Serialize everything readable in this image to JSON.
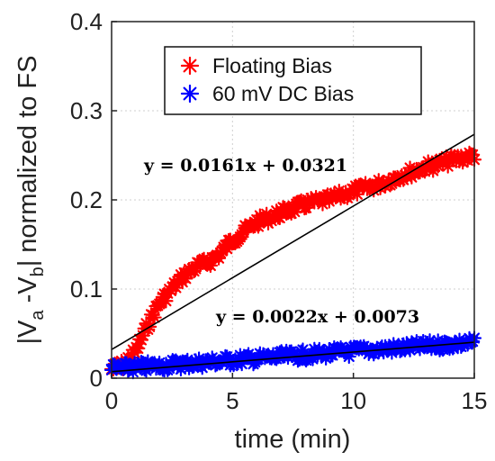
{
  "chart_data": {
    "type": "scatter",
    "xlabel": "time (min)",
    "ylabel": "|V_a-V_b| normalized to FS",
    "ylabel_parts": {
      "a": "|V",
      "sub_a": "a",
      "b": " -V",
      "sub_b": "b",
      "c": "| normalized to FS"
    },
    "xlim": [
      0,
      15
    ],
    "ylim": [
      0,
      0.4
    ],
    "x_ticks": [
      0,
      5,
      10,
      15
    ],
    "x_tick_labels": [
      "0",
      "5",
      "10",
      "15"
    ],
    "y_ticks": [
      0,
      0.1,
      0.2,
      0.3,
      0.4
    ],
    "y_tick_labels": [
      "0",
      "0.1",
      "0.2",
      "0.3",
      "0.4"
    ],
    "grid": true,
    "legend_position": "top-center",
    "series": [
      {
        "name": "Floating Bias",
        "color": "#ff0000",
        "marker": "asterisk",
        "x": [
          0,
          0.5,
          1,
          1.5,
          2,
          2.5,
          3,
          3.5,
          4,
          4.5,
          5,
          5.5,
          6,
          6.5,
          7,
          7.5,
          8,
          8.5,
          9,
          9.5,
          10,
          10.5,
          11,
          11.5,
          12,
          12.5,
          13,
          13.5,
          14,
          14.5,
          15
        ],
        "y": [
          0.01,
          0.015,
          0.03,
          0.06,
          0.085,
          0.1,
          0.115,
          0.125,
          0.13,
          0.14,
          0.155,
          0.165,
          0.175,
          0.18,
          0.185,
          0.19,
          0.195,
          0.198,
          0.2,
          0.205,
          0.21,
          0.213,
          0.217,
          0.222,
          0.228,
          0.232,
          0.237,
          0.24,
          0.244,
          0.247,
          0.25
        ]
      },
      {
        "name": "60 mV DC Bias",
        "color": "#0000ff",
        "marker": "asterisk",
        "x": [
          0,
          0.5,
          1,
          1.5,
          2,
          2.5,
          3,
          3.5,
          4,
          4.5,
          5,
          5.5,
          6,
          6.5,
          7,
          7.5,
          8,
          8.5,
          9,
          9.5,
          10,
          10.5,
          11,
          11.5,
          12,
          12.5,
          13,
          13.5,
          14,
          14.5,
          15
        ],
        "y": [
          0.01,
          0.011,
          0.012,
          0.013,
          0.014,
          0.015,
          0.016,
          0.017,
          0.018,
          0.019,
          0.02,
          0.021,
          0.022,
          0.023,
          0.024,
          0.025,
          0.026,
          0.027,
          0.028,
          0.029,
          0.03,
          0.031,
          0.032,
          0.033,
          0.034,
          0.035,
          0.036,
          0.037,
          0.038,
          0.039,
          0.04
        ]
      }
    ],
    "fits": [
      {
        "slope": 0.0161,
        "intercept": 0.0321,
        "x_range": [
          0,
          15
        ],
        "color": "#000000",
        "label": "y = 0.0161x + 0.0321"
      },
      {
        "slope": 0.0022,
        "intercept": 0.0073,
        "x_range": [
          0,
          15
        ],
        "color": "#000000",
        "label": "y = 0.0022x + 0.0073"
      }
    ],
    "legend": [
      {
        "name": "Floating Bias",
        "color": "#ff0000"
      },
      {
        "name": "60 mV DC Bias",
        "color": "#0000ff"
      }
    ]
  }
}
